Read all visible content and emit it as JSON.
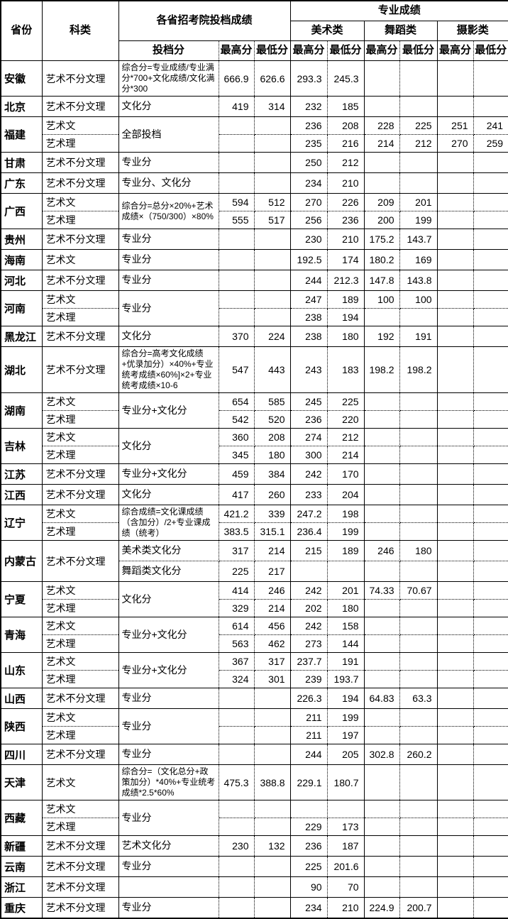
{
  "table": {
    "header": {
      "province": "省份",
      "category": "科类",
      "dossier_section": "各省招考院投档成绩",
      "major_section": "专业成绩",
      "dossier_score": "投档分",
      "max": "最高分",
      "min": "最低分",
      "art": "美术类",
      "dance": "舞蹈类",
      "photo": "摄影类"
    },
    "groups": [
      {
        "province": "安徽",
        "rows": [
          {
            "cat": "艺术不分文理",
            "formula": "综合分=专业成绩/专业满分*700+文化成绩/文化满分*300",
            "cells": [
              "666.9",
              "626.6",
              "293.3",
              "245.3",
              "",
              "",
              "",
              ""
            ]
          }
        ]
      },
      {
        "province": "北京",
        "rows": [
          {
            "cat": "艺术不分文理",
            "formula": "文化分",
            "cells": [
              "419",
              "314",
              "232",
              "185",
              "",
              "",
              "",
              ""
            ]
          }
        ]
      },
      {
        "province": "福建",
        "rows": [
          {
            "cat": "艺术文",
            "formula": "全部投档",
            "formulaSpan": 2,
            "cells": [
              "",
              "",
              "236",
              "208",
              "228",
              "225",
              "251",
              "241"
            ]
          },
          {
            "cat": "艺术理",
            "cells": [
              "",
              "",
              "235",
              "216",
              "214",
              "212",
              "270",
              "259"
            ]
          }
        ]
      },
      {
        "province": "甘肃",
        "rows": [
          {
            "cat": "艺术不分文理",
            "formula": "专业分",
            "cells": [
              "",
              "",
              "250",
              "212",
              "",
              "",
              "",
              ""
            ]
          }
        ]
      },
      {
        "province": "广东",
        "rows": [
          {
            "cat": "艺术不分文理",
            "formula": "专业分、文化分",
            "cells": [
              "",
              "",
              "234",
              "210",
              "",
              "",
              "",
              ""
            ]
          }
        ]
      },
      {
        "province": "广西",
        "rows": [
          {
            "cat": "艺术文",
            "formula": "综合分=总分×20%+艺术成绩×（750/300）×80%",
            "formulaSpan": 2,
            "cells": [
              "594",
              "512",
              "270",
              "226",
              "209",
              "201",
              "",
              ""
            ]
          },
          {
            "cat": "艺术理",
            "cells": [
              "555",
              "517",
              "256",
              "236",
              "200",
              "199",
              "",
              ""
            ]
          }
        ]
      },
      {
        "province": "贵州",
        "rows": [
          {
            "cat": "艺术不分文理",
            "formula": "专业分",
            "cells": [
              "",
              "",
              "230",
              "210",
              "175.2",
              "143.7",
              "",
              ""
            ]
          }
        ]
      },
      {
        "province": "海南",
        "rows": [
          {
            "cat": "艺术文",
            "formula": "专业分",
            "cells": [
              "",
              "",
              "192.5",
              "174",
              "180.2",
              "169",
              "",
              ""
            ]
          }
        ]
      },
      {
        "province": "河北",
        "rows": [
          {
            "cat": "艺术不分文理",
            "formula": "专业分",
            "cells": [
              "",
              "",
              "244",
              "212.3",
              "147.8",
              "143.8",
              "",
              ""
            ]
          }
        ]
      },
      {
        "province": "河南",
        "rows": [
          {
            "cat": "艺术文",
            "formula": "专业分",
            "formulaSpan": 2,
            "cells": [
              "",
              "",
              "247",
              "189",
              "100",
              "100",
              "",
              ""
            ]
          },
          {
            "cat": "艺术理",
            "cells": [
              "",
              "",
              "238",
              "194",
              "",
              "",
              "",
              ""
            ]
          }
        ]
      },
      {
        "province": "黑龙江",
        "rows": [
          {
            "cat": "艺术不分文理",
            "formula": "文化分",
            "cells": [
              "370",
              "224",
              "238",
              "180",
              "192",
              "191",
              "",
              ""
            ]
          }
        ]
      },
      {
        "province": "湖北",
        "rows": [
          {
            "cat": "艺术不分文理",
            "formula": "综合分=高考文化成绩+优录加分）×40%+专业统考成绩×60%]×2+专业统考成绩×10-6",
            "cells": [
              "547",
              "443",
              "243",
              "183",
              "198.2",
              "198.2",
              "",
              ""
            ]
          }
        ]
      },
      {
        "province": "湖南",
        "rows": [
          {
            "cat": "艺术文",
            "formula": "专业分+文化分",
            "formulaSpan": 2,
            "cells": [
              "654",
              "585",
              "245",
              "225",
              "",
              "",
              "",
              ""
            ]
          },
          {
            "cat": "艺术理",
            "cells": [
              "542",
              "520",
              "236",
              "220",
              "",
              "",
              "",
              ""
            ]
          }
        ]
      },
      {
        "province": "吉林",
        "rows": [
          {
            "cat": "艺术文",
            "formula": "文化分",
            "formulaSpan": 2,
            "cells": [
              "360",
              "208",
              "274",
              "212",
              "",
              "",
              "",
              ""
            ]
          },
          {
            "cat": "艺术理",
            "cells": [
              "345",
              "180",
              "300",
              "214",
              "",
              "",
              "",
              ""
            ]
          }
        ]
      },
      {
        "province": "江苏",
        "rows": [
          {
            "cat": "艺术不分文理",
            "formula": "专业分+文化分",
            "cells": [
              "459",
              "384",
              "242",
              "170",
              "",
              "",
              "",
              ""
            ]
          }
        ]
      },
      {
        "province": "江西",
        "rows": [
          {
            "cat": "艺术不分文理",
            "formula": "文化分",
            "cells": [
              "417",
              "260",
              "233",
              "204",
              "",
              "",
              "",
              ""
            ]
          }
        ]
      },
      {
        "province": "辽宁",
        "rows": [
          {
            "cat": "艺术文",
            "formula": "综合成绩=文化课成绩（含加分）/2+专业课成绩（统考）",
            "formulaSpan": 2,
            "cells": [
              "421.2",
              "339",
              "247.2",
              "198",
              "",
              "",
              "",
              ""
            ]
          },
          {
            "cat": "艺术理",
            "cells": [
              "383.5",
              "315.1",
              "236.4",
              "199",
              "",
              "",
              "",
              ""
            ]
          }
        ]
      },
      {
        "province": "内蒙古",
        "rows": [
          {
            "cat": "艺术不分文理",
            "catSpan": 2,
            "formula": "美术类文化分",
            "cells": [
              "317",
              "214",
              "215",
              "189",
              "246",
              "180",
              "",
              ""
            ]
          },
          {
            "formula": "舞蹈类文化分",
            "cells": [
              "225",
              "217",
              "",
              "",
              "",
              "",
              "",
              ""
            ]
          }
        ]
      },
      {
        "province": "宁夏",
        "rows": [
          {
            "cat": "艺术文",
            "formula": "文化分",
            "formulaSpan": 2,
            "cells": [
              "414",
              "246",
              "242",
              "201",
              "74.33",
              "70.67",
              "",
              ""
            ]
          },
          {
            "cat": "艺术理",
            "cells": [
              "329",
              "214",
              "202",
              "180",
              "",
              "",
              "",
              ""
            ]
          }
        ]
      },
      {
        "province": "青海",
        "rows": [
          {
            "cat": "艺术文",
            "formula": "专业分+文化分",
            "formulaSpan": 2,
            "cells": [
              "614",
              "456",
              "242",
              "158",
              "",
              "",
              "",
              ""
            ]
          },
          {
            "cat": "艺术理",
            "cells": [
              "563",
              "462",
              "273",
              "144",
              "",
              "",
              "",
              ""
            ]
          }
        ]
      },
      {
        "province": "山东",
        "rows": [
          {
            "cat": "艺术文",
            "formula": "专业分+文化分",
            "formulaSpan": 2,
            "cells": [
              "367",
              "317",
              "237.7",
              "191",
              "",
              "",
              "",
              ""
            ]
          },
          {
            "cat": "艺术理",
            "cells": [
              "324",
              "301",
              "239",
              "193.7",
              "",
              "",
              "",
              ""
            ]
          }
        ]
      },
      {
        "province": "山西",
        "rows": [
          {
            "cat": "艺术不分文理",
            "formula": "专业分",
            "cells": [
              "",
              "",
              "226.3",
              "194",
              "64.83",
              "63.3",
              "",
              ""
            ]
          }
        ]
      },
      {
        "province": "陕西",
        "rows": [
          {
            "cat": "艺术文",
            "formula": "专业分",
            "formulaSpan": 2,
            "cells": [
              "",
              "",
              "211",
              "199",
              "",
              "",
              "",
              ""
            ]
          },
          {
            "cat": "艺术理",
            "cells": [
              "",
              "",
              "211",
              "197",
              "",
              "",
              "",
              ""
            ]
          }
        ]
      },
      {
        "province": "四川",
        "rows": [
          {
            "cat": "艺术不分文理",
            "formula": "专业分",
            "cells": [
              "",
              "",
              "244",
              "205",
              "302.8",
              "260.2",
              "",
              ""
            ]
          }
        ]
      },
      {
        "province": "天津",
        "rows": [
          {
            "cat": "艺术文",
            "formula": "综合分=（文化总分+政策加分）*40%+专业统考成绩*2.5*60%",
            "cells": [
              "475.3",
              "388.8",
              "229.1",
              "180.7",
              "",
              "",
              "",
              ""
            ]
          }
        ]
      },
      {
        "province": "西藏",
        "rows": [
          {
            "cat": "艺术文",
            "formula": "专业分",
            "formulaSpan": 2,
            "cells": [
              "",
              "",
              "",
              "",
              "",
              "",
              "",
              ""
            ]
          },
          {
            "cat": "艺术理",
            "cells": [
              "",
              "",
              "229",
              "173",
              "",
              "",
              "",
              ""
            ]
          }
        ]
      },
      {
        "province": "新疆",
        "rows": [
          {
            "cat": "艺术不分文理",
            "formula": "艺术文化分",
            "cells": [
              "230",
              "132",
              "236",
              "187",
              "",
              "",
              "",
              ""
            ]
          }
        ]
      },
      {
        "province": "云南",
        "rows": [
          {
            "cat": "艺术不分文理",
            "formula": "专业分",
            "cells": [
              "",
              "",
              "225",
              "201.6",
              "",
              "",
              "",
              ""
            ]
          }
        ]
      },
      {
        "province": "浙江",
        "rows": [
          {
            "cat": "艺术不分文理",
            "formula": "",
            "cells": [
              "",
              "",
              "90",
              "70",
              "",
              "",
              "",
              ""
            ]
          }
        ]
      },
      {
        "province": "重庆",
        "rows": [
          {
            "cat": "艺术不分文理",
            "formula": "专业分",
            "cells": [
              "",
              "",
              "234",
              "210",
              "224.9",
              "200.7",
              "",
              ""
            ]
          }
        ]
      }
    ]
  }
}
